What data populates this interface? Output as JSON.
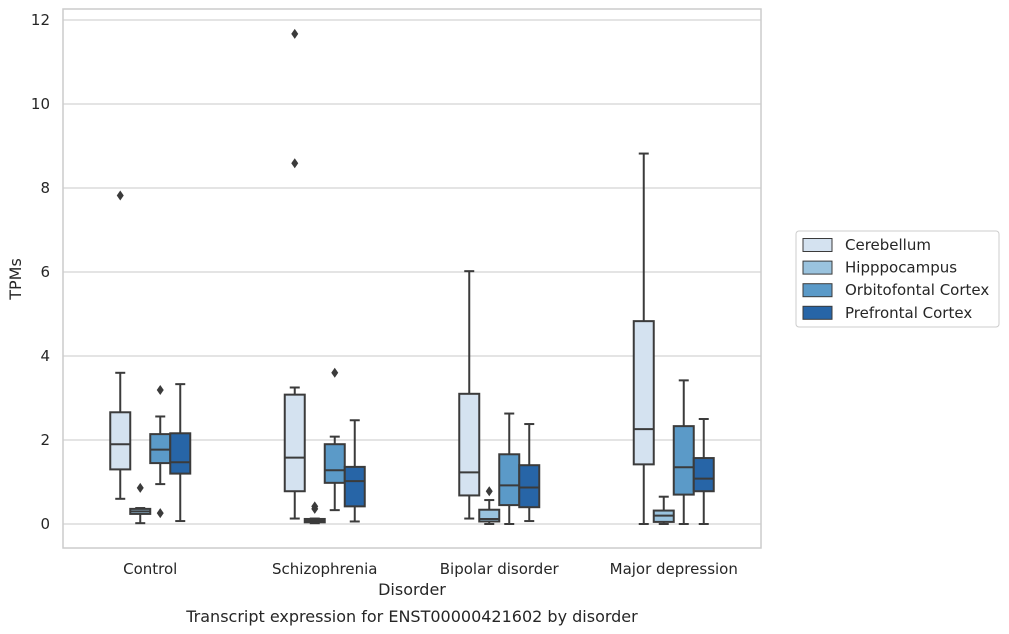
{
  "chart_data": {
    "type": "box",
    "title": "",
    "caption": "Transcript expression for ENST00000421602 by disorder",
    "xlabel": "Disorder",
    "ylabel": "TPMs",
    "ylim": [
      -0.55,
      12.25
    ],
    "yticks": [
      0,
      2,
      4,
      6,
      8,
      10,
      12
    ],
    "grid": "horizontal",
    "legend_position": "right",
    "categories": [
      "Control",
      "Schizophrenia",
      "Bipolar disorder",
      "Major depression"
    ],
    "series": [
      {
        "name": "Cerebellum",
        "color": "#d4e2f0",
        "boxes": [
          {
            "whislo": 0.6,
            "q1": 1.3,
            "med": 1.9,
            "q3": 2.66,
            "whishi": 3.6,
            "fliers": [
              7.82
            ]
          },
          {
            "whislo": 0.13,
            "q1": 0.78,
            "med": 1.58,
            "q3": 3.08,
            "whishi": 3.25,
            "fliers": [
              8.59,
              11.67
            ]
          },
          {
            "whislo": 0.13,
            "q1": 0.68,
            "med": 1.23,
            "q3": 3.1,
            "whishi": 6.02,
            "fliers": []
          },
          {
            "whislo": 0.0,
            "q1": 1.42,
            "med": 2.26,
            "q3": 4.83,
            "whishi": 8.82,
            "fliers": []
          }
        ]
      },
      {
        "name": "Hipppocampus",
        "color": "#9ac3de",
        "boxes": [
          {
            "whislo": 0.02,
            "q1": 0.24,
            "med": 0.3,
            "q3": 0.36,
            "whishi": 0.38,
            "fliers": [
              0.86
            ]
          },
          {
            "whislo": 0.02,
            "q1": 0.04,
            "med": 0.08,
            "q3": 0.12,
            "whishi": 0.13,
            "fliers": [
              0.36,
              0.42
            ]
          },
          {
            "whislo": 0.0,
            "q1": 0.06,
            "med": 0.12,
            "q3": 0.34,
            "whishi": 0.57,
            "fliers": [
              0.78
            ]
          },
          {
            "whislo": 0.0,
            "q1": 0.05,
            "med": 0.2,
            "q3": 0.32,
            "whishi": 0.65,
            "fliers": []
          }
        ]
      },
      {
        "name": "Orbitofontal Cortex",
        "color": "#5b9ac8",
        "boxes": [
          {
            "whislo": 0.95,
            "q1": 1.45,
            "med": 1.77,
            "q3": 2.14,
            "whishi": 2.56,
            "fliers": [
              3.19,
              0.26
            ]
          },
          {
            "whislo": 0.33,
            "q1": 0.98,
            "med": 1.28,
            "q3": 1.9,
            "whishi": 2.08,
            "fliers": [
              3.6
            ]
          },
          {
            "whislo": 0.0,
            "q1": 0.45,
            "med": 0.92,
            "q3": 1.66,
            "whishi": 2.63,
            "fliers": []
          },
          {
            "whislo": 0.0,
            "q1": 0.7,
            "med": 1.35,
            "q3": 2.33,
            "whishi": 3.42,
            "fliers": []
          }
        ]
      },
      {
        "name": "Prefrontal Cortex",
        "color": "#2765a7",
        "boxes": [
          {
            "whislo": 0.07,
            "q1": 1.2,
            "med": 1.47,
            "q3": 2.16,
            "whishi": 3.33,
            "fliers": []
          },
          {
            "whislo": 0.06,
            "q1": 0.42,
            "med": 1.02,
            "q3": 1.36,
            "whishi": 2.47,
            "fliers": []
          },
          {
            "whislo": 0.07,
            "q1": 0.4,
            "med": 0.87,
            "q3": 1.4,
            "whishi": 2.38,
            "fliers": []
          },
          {
            "whislo": 0.0,
            "q1": 0.78,
            "med": 1.08,
            "q3": 1.57,
            "whishi": 2.5,
            "fliers": []
          }
        ]
      }
    ]
  }
}
